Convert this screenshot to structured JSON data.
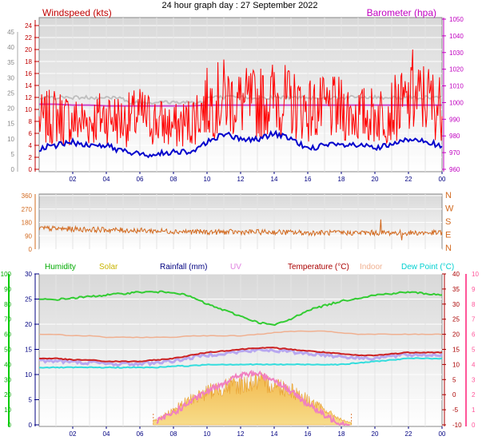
{
  "title": "24 hour graph day : 27 September 2022",
  "x_ticks": [
    "02",
    "04",
    "06",
    "08",
    "10",
    "12",
    "14",
    "16",
    "18",
    "20",
    "22",
    "00"
  ],
  "panel1": {
    "left_label": "Windspeed (kts)",
    "right_label": "Barometer (hpa)",
    "left_outer_ticks": [
      "0",
      "5",
      "10",
      "15",
      "20",
      "25",
      "30",
      "35",
      "40",
      "45"
    ],
    "left_inner_ticks": [
      "0",
      "2",
      "4",
      "6",
      "8",
      "10",
      "12",
      "14",
      "16",
      "18",
      "20",
      "22",
      "24"
    ],
    "right_ticks": [
      "960",
      "970",
      "980",
      "990",
      "1000",
      "1010",
      "1020",
      "1030",
      "1040",
      "1050"
    ],
    "colors": {
      "wind": "#ff0000",
      "avg": "#0000cc",
      "baro": "#cc44cc",
      "gust_trace": "#c0c0c0"
    }
  },
  "panel2": {
    "left_ticks": [
      "0",
      "90",
      "180",
      "270",
      "360"
    ],
    "right_labels": [
      "N",
      "W",
      "S",
      "E",
      "N"
    ],
    "color": "#d2691e"
  },
  "panel3": {
    "legend": [
      {
        "label": "Humidity",
        "color": "#00aa00"
      },
      {
        "label": "Solar",
        "color": "#c8b400"
      },
      {
        "label": "Rainfall (mm)",
        "color": "#000080"
      },
      {
        "label": "UV",
        "color": "#e080e0"
      },
      {
        "label": "Temperature (°C)",
        "color": "#aa0000"
      },
      {
        "label": "Indoor",
        "color": "#f0b090"
      },
      {
        "label": "Dew Point (°C)",
        "color": "#00d0d0"
      }
    ],
    "left_humidity_ticks": [
      "0",
      "10",
      "20",
      "30",
      "40",
      "50",
      "60",
      "70",
      "80",
      "90",
      "100"
    ],
    "left_rain_ticks": [
      "0",
      "5",
      "10",
      "15",
      "20",
      "25",
      "30"
    ],
    "right_temp_ticks": [
      "-10",
      "-5",
      "0",
      "5",
      "10",
      "15",
      "20",
      "25",
      "30",
      "35",
      "40"
    ],
    "right_uv_ticks": [
      "0",
      "1",
      "2",
      "3",
      "4",
      "5",
      "6",
      "7",
      "8",
      "9",
      "10"
    ]
  },
  "chart_data": [
    {
      "type": "line",
      "title": "24 hour graph day : 27 September 2022",
      "x_hours": [
        0,
        1,
        2,
        3,
        4,
        5,
        6,
        7,
        8,
        9,
        10,
        11,
        12,
        13,
        14,
        15,
        16,
        17,
        18,
        19,
        20,
        21,
        22,
        23,
        24
      ],
      "series": [
        {
          "name": "Windspeed (kts)",
          "values": [
            8,
            9,
            8,
            8,
            9,
            8,
            9,
            8,
            7,
            8,
            11,
            12,
            11,
            11,
            12,
            11,
            10,
            10,
            10,
            9,
            9,
            10,
            11,
            12,
            10
          ]
        },
        {
          "name": "Windspeed (kts) average",
          "values": [
            3.5,
            4,
            4.5,
            4,
            4,
            3,
            2.5,
            2.5,
            3,
            3,
            4.5,
            6,
            5,
            5,
            6,
            5,
            3.5,
            4,
            4,
            4,
            3.5,
            4,
            5,
            5,
            3.5
          ]
        },
        {
          "name": "Barometer (hpa)",
          "values": [
            999,
            999,
            998.5,
            998.5,
            998,
            998,
            998,
            998,
            998,
            998,
            998.5,
            998.5,
            998.5,
            998.5,
            998.5,
            998.5,
            998.5,
            998.5,
            998.5,
            998.5,
            998.5,
            998.5,
            998.5,
            998.5,
            998.5
          ]
        }
      ],
      "ylim": [
        -1,
        25
      ]
    },
    {
      "type": "line",
      "x_hours": [
        0,
        2,
        4,
        6,
        8,
        10,
        12,
        14,
        16,
        18,
        20,
        22,
        24
      ],
      "series": [
        {
          "name": "Wind direction",
          "values": [
            140,
            135,
            130,
            125,
            120,
            115,
            115,
            115,
            110,
            110,
            110,
            110,
            110
          ]
        }
      ],
      "ylim": [
        0,
        360
      ]
    },
    {
      "type": "line",
      "x_hours": [
        0,
        1,
        2,
        3,
        4,
        5,
        6,
        7,
        8,
        9,
        10,
        11,
        12,
        13,
        14,
        15,
        16,
        17,
        18,
        19,
        20,
        21,
        22,
        23,
        24
      ],
      "series": [
        {
          "name": "Humidity",
          "values": [
            83,
            83,
            84,
            85,
            86,
            87,
            88,
            88,
            88,
            85,
            80,
            76,
            72,
            68,
            66,
            70,
            76,
            79,
            82,
            84,
            86,
            87,
            88,
            87,
            86
          ]
        },
        {
          "name": "Temperature (°C)",
          "values": [
            12,
            12,
            11.5,
            11.5,
            11,
            11,
            11,
            11.5,
            12,
            13,
            14,
            14.5,
            15,
            15.5,
            15.5,
            15,
            14.5,
            14,
            13.5,
            13,
            13,
            13.5,
            14,
            14,
            14
          ]
        },
        {
          "name": "Indoor",
          "values": [
            20,
            20,
            19.5,
            19.5,
            19,
            19,
            19,
            19,
            19,
            19.5,
            19.5,
            19.5,
            19.5,
            20,
            20.5,
            21,
            21,
            21,
            20.5,
            20,
            20,
            20,
            20,
            20,
            20
          ]
        },
        {
          "name": "Dew Point (°C)",
          "values": [
            9,
            9,
            9,
            9,
            9,
            9,
            9,
            9,
            9.5,
            9.5,
            10,
            10,
            10,
            10,
            10,
            10,
            10,
            10,
            10,
            10.5,
            11,
            11.5,
            12,
            12,
            12
          ]
        },
        {
          "name": "Solar",
          "values": [
            0,
            0,
            0,
            0,
            0,
            0,
            0,
            1,
            3,
            5,
            6.5,
            7.5,
            8,
            8.5,
            8,
            7,
            5,
            3,
            1,
            0,
            0,
            0,
            0,
            0,
            0
          ]
        },
        {
          "name": "UV",
          "values": [
            0,
            0,
            0,
            0,
            0,
            0,
            0,
            0.2,
            0.8,
            1.5,
            2.2,
            2.8,
            3.3,
            3.4,
            3,
            2.2,
            1.4,
            0.6,
            0.1,
            0,
            0,
            0,
            0,
            0,
            0
          ]
        }
      ],
      "ylim": [
        0,
        100
      ]
    }
  ]
}
